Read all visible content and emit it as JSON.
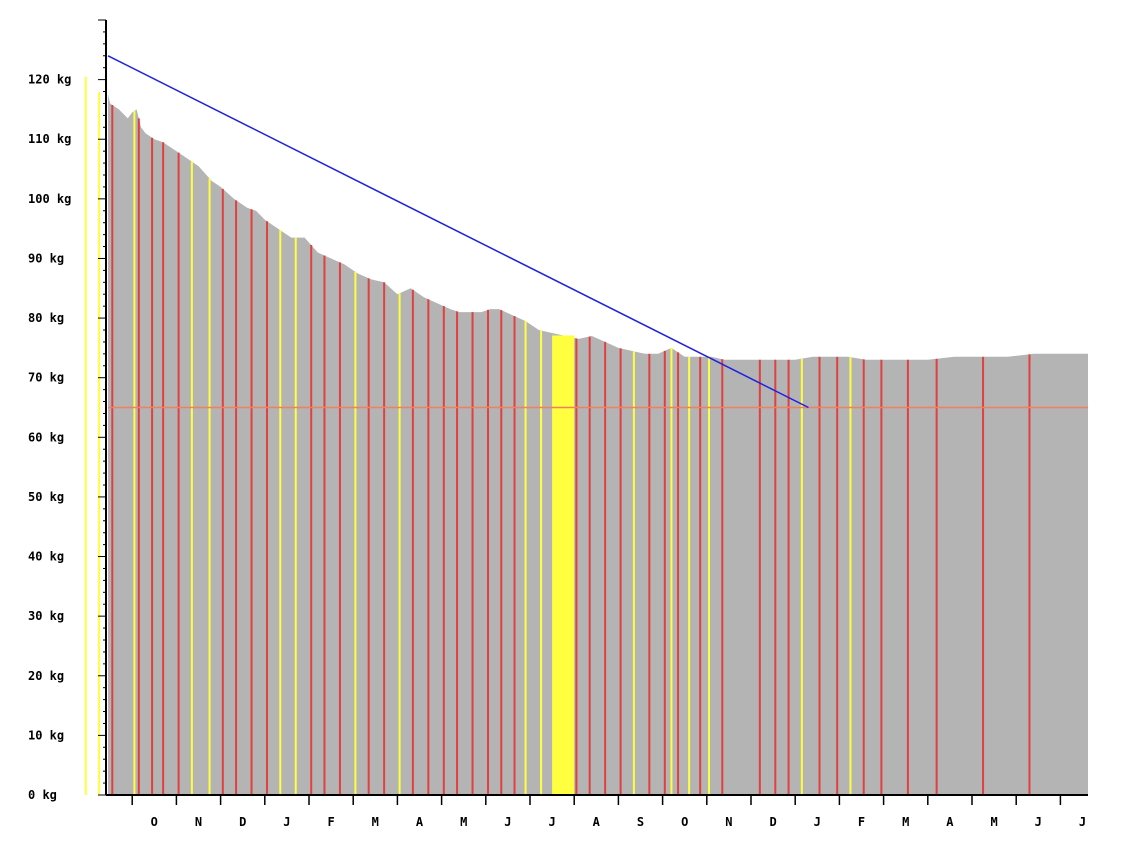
{
  "chart_data": {
    "type": "area",
    "title": "",
    "xlabel": "",
    "ylabel": "",
    "y_unit": "kg",
    "ylim": [
      0,
      130
    ],
    "y_ticks": [
      0,
      10,
      20,
      30,
      40,
      50,
      60,
      70,
      80,
      90,
      100,
      110,
      120
    ],
    "y_tick_labels": [
      "0 kg",
      "10 kg",
      "20 kg",
      "30 kg",
      "40 kg",
      "50 kg",
      "60 kg",
      "70 kg",
      "80 kg",
      "90 kg",
      "100 kg",
      "110 kg",
      "120 kg"
    ],
    "month_labels": [
      "O",
      "N",
      "D",
      "J",
      "F",
      "M",
      "A",
      "M",
      "J",
      "J",
      "A",
      "S",
      "O",
      "N",
      "D",
      "J",
      "F",
      "M",
      "A",
      "M",
      "J",
      "J"
    ],
    "x_range_months": [
      -0.5,
      21.8
    ],
    "grid": false,
    "weight_series": {
      "x": [
        -0.5,
        -0.3,
        -0.1,
        0.1,
        0.3,
        0.5,
        0.7,
        0.9,
        1.0,
        1.1,
        1.2,
        1.3,
        1.5,
        1.7,
        1.9,
        2.1,
        2.3,
        2.5,
        2.8,
        3.0,
        3.3,
        3.6,
        3.8,
        4.0,
        4.3,
        4.6,
        4.9,
        5.2,
        5.5,
        5.8,
        6.1,
        6.4,
        6.7,
        7.0,
        7.3,
        7.6,
        7.9,
        8.2,
        8.4,
        8.6,
        8.7,
        8.9,
        9.1,
        9.3,
        9.6,
        9.9,
        10.2,
        10.5,
        10.8,
        11.1,
        11.4,
        11.7,
        12.0,
        12.3,
        12.6,
        12.9,
        13.2,
        13.5,
        13.8,
        14.1,
        14.4,
        14.7,
        15.0,
        15.2,
        15.4,
        15.6,
        16.0,
        16.4,
        16.8,
        17.2,
        17.6,
        18.0,
        18.4,
        19.0,
        19.6,
        20.2,
        20.8,
        21.4,
        21.8
      ],
      "y": [
        124,
        122.5,
        121,
        119,
        117.5,
        116,
        115,
        113.5,
        114.5,
        115,
        112,
        111,
        110,
        109.5,
        108.5,
        107.5,
        106.5,
        105.5,
        103,
        102,
        100,
        98.5,
        98,
        96.5,
        95,
        93.5,
        93.5,
        91,
        90,
        89,
        87.5,
        86.5,
        86,
        84,
        85,
        83.5,
        82.5,
        81.5,
        81,
        81,
        81,
        81,
        81.5,
        81.5,
        80.5,
        79.5,
        78,
        77.5,
        77,
        76.5,
        77,
        76,
        75,
        74.5,
        74,
        74,
        75,
        73.5,
        73.5,
        73.5,
        73,
        73,
        73,
        73,
        73,
        73,
        73,
        73.5,
        73.5,
        73.5,
        73,
        73,
        73,
        73,
        73.5,
        73.5,
        73.5,
        74,
        74
      ]
    },
    "trend_line": {
      "x": [
        -0.5,
        16.3
      ],
      "y": [
        124,
        65
      ]
    },
    "goal_line": {
      "y": 65,
      "color": "#f08060"
    },
    "vertical_markers": [
      {
        "x": -0.05,
        "color": "#ffff40"
      },
      {
        "x": 0.25,
        "color": "#ffff40"
      },
      {
        "x": 0.55,
        "color": "#e04040"
      },
      {
        "x": 1.05,
        "color": "#ffff40"
      },
      {
        "x": 1.15,
        "color": "#e04040"
      },
      {
        "x": 1.45,
        "color": "#e04040"
      },
      {
        "x": 1.7,
        "color": "#e04040"
      },
      {
        "x": 2.05,
        "color": "#e04040"
      },
      {
        "x": 2.35,
        "color": "#ffff40"
      },
      {
        "x": 2.75,
        "color": "#ffff40"
      },
      {
        "x": 3.05,
        "color": "#e04040"
      },
      {
        "x": 3.35,
        "color": "#e04040"
      },
      {
        "x": 3.7,
        "color": "#e04040"
      },
      {
        "x": 4.05,
        "color": "#e04040"
      },
      {
        "x": 4.35,
        "color": "#ffff40"
      },
      {
        "x": 4.7,
        "color": "#ffff40"
      },
      {
        "x": 5.05,
        "color": "#e04040"
      },
      {
        "x": 5.35,
        "color": "#e04040"
      },
      {
        "x": 5.7,
        "color": "#e04040"
      },
      {
        "x": 6.05,
        "color": "#ffff40"
      },
      {
        "x": 6.35,
        "color": "#e04040"
      },
      {
        "x": 6.7,
        "color": "#e04040"
      },
      {
        "x": 7.05,
        "color": "#ffff40"
      },
      {
        "x": 7.35,
        "color": "#e04040"
      },
      {
        "x": 7.7,
        "color": "#e04040"
      },
      {
        "x": 8.05,
        "color": "#e04040"
      },
      {
        "x": 8.35,
        "color": "#e04040"
      },
      {
        "x": 8.7,
        "color": "#e04040"
      },
      {
        "x": 9.05,
        "color": "#e04040"
      },
      {
        "x": 9.35,
        "color": "#e04040"
      },
      {
        "x": 9.65,
        "color": "#e04040"
      },
      {
        "x": 9.9,
        "color": "#ffff40"
      },
      {
        "x": 10.25,
        "color": "#ffff40"
      },
      {
        "x": 11.05,
        "color": "#e04040"
      },
      {
        "x": 11.35,
        "color": "#e04040"
      },
      {
        "x": 11.7,
        "color": "#e04040"
      },
      {
        "x": 12.05,
        "color": "#e04040"
      },
      {
        "x": 12.35,
        "color": "#ffff40"
      },
      {
        "x": 12.7,
        "color": "#e04040"
      },
      {
        "x": 13.05,
        "color": "#e04040"
      },
      {
        "x": 13.2,
        "color": "#ffff40"
      },
      {
        "x": 13.35,
        "color": "#e04040"
      },
      {
        "x": 13.6,
        "color": "#ffff40"
      },
      {
        "x": 13.85,
        "color": "#e04040"
      },
      {
        "x": 14.05,
        "color": "#ffff40"
      },
      {
        "x": 14.35,
        "color": "#e04040"
      },
      {
        "x": 15.2,
        "color": "#e04040"
      },
      {
        "x": 15.55,
        "color": "#e04040"
      },
      {
        "x": 15.85,
        "color": "#e04040"
      },
      {
        "x": 16.15,
        "color": "#ffff40"
      },
      {
        "x": 16.55,
        "color": "#e04040"
      },
      {
        "x": 16.95,
        "color": "#e04040"
      },
      {
        "x": 17.25,
        "color": "#ffff40"
      },
      {
        "x": 17.55,
        "color": "#e04040"
      },
      {
        "x": 17.95,
        "color": "#e04040"
      },
      {
        "x": 18.55,
        "color": "#e04040"
      },
      {
        "x": 19.2,
        "color": "#e04040"
      },
      {
        "x": 20.25,
        "color": "#e04040"
      },
      {
        "x": 21.3,
        "color": "#e04040"
      }
    ],
    "yellow_band": {
      "x": [
        10.5,
        11.0
      ],
      "color": "#ffff40"
    },
    "colors": {
      "area": "#b4b4b4",
      "trend": "#2020e0",
      "axis": "#000000"
    }
  }
}
